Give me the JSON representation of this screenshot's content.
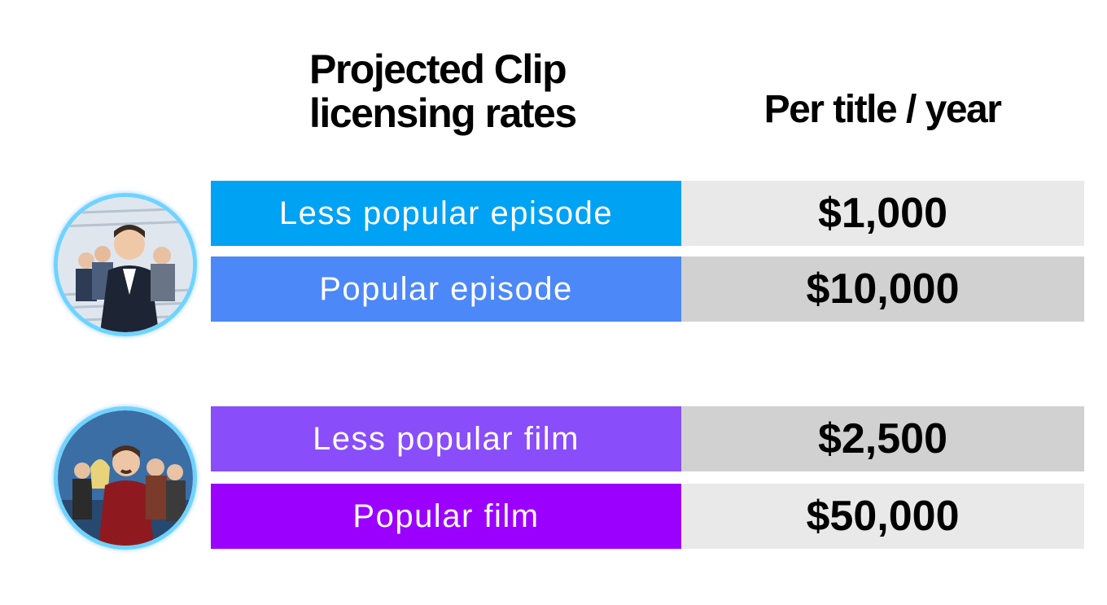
{
  "title_line1": "Projected Clip",
  "title_line2": "licensing rates",
  "column_header": "Per title / year",
  "rows": [
    {
      "label": "Less popular episode",
      "value": "$1,000",
      "label_color": "#00a2f4",
      "value_color": "#e9e9e9"
    },
    {
      "label": "Popular episode",
      "value": "$10,000",
      "label_color": "#4c88f8",
      "value_color": "#d1d1d1"
    },
    {
      "label": "Less popular film",
      "value": "$2,500",
      "label_color": "#8a4dfa",
      "value_color": "#d1d1d1"
    },
    {
      "label": "Popular film",
      "value": "$50,000",
      "label_color": "#9b00ff",
      "value_color": "#e9e9e9"
    }
  ],
  "avatars": [
    {
      "icon": "tv-show-cast-photo"
    },
    {
      "icon": "film-cast-photo"
    }
  ]
}
